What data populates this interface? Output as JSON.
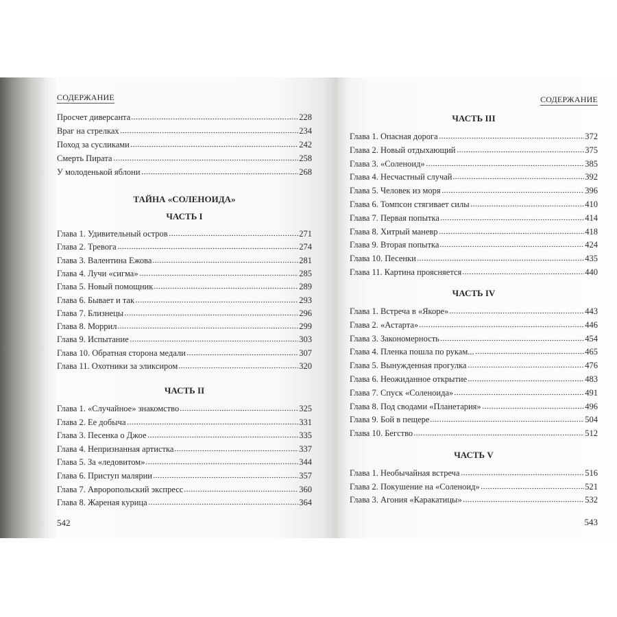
{
  "left_page": {
    "header": "СОДЕРЖАНИЕ",
    "entries": [
      {
        "label": "Просчет диверсанта",
        "page": "228"
      },
      {
        "label": "Враг на стрелках",
        "page": "234"
      },
      {
        "label": "Поход за сусликами",
        "page": "242"
      },
      {
        "label": "Смерть Пирата",
        "page": "258"
      },
      {
        "label": "У молоденькой яблони",
        "page": "268"
      }
    ],
    "book_title": "ТАЙНА «СОЛЕНОИДА»",
    "parts": [
      {
        "title": "ЧАСТЬ I",
        "chapters": [
          {
            "label": "Глава 1. Удивительный остров",
            "page": "271"
          },
          {
            "label": "Глава 2. Тревога",
            "page": "274"
          },
          {
            "label": "Глава 3. Валентина Ежова",
            "page": "281"
          },
          {
            "label": "Глава 4. Лучи «сигма»",
            "page": "285"
          },
          {
            "label": "Глава 5. Новый помощник",
            "page": "289"
          },
          {
            "label": "Глава 6. Бывает и так",
            "page": "293"
          },
          {
            "label": "Глава 7. Близнецы",
            "page": "296"
          },
          {
            "label": "Глава 8. Моррил",
            "page": "299"
          },
          {
            "label": "Глава 9. Испытание",
            "page": "303"
          },
          {
            "label": "Глава 10. Обратная сторона медали",
            "page": "307"
          },
          {
            "label": "Глава 11. Охотники за эликсиром",
            "page": "320"
          }
        ]
      },
      {
        "title": "ЧАСТЬ II",
        "chapters": [
          {
            "label": "Глава 1. «Случайное» знакомство",
            "page": "325"
          },
          {
            "label": "Глава 2. Ее добыча",
            "page": "331"
          },
          {
            "label": "Глава 3. Песенка о Джое",
            "page": "335"
          },
          {
            "label": "Глава 4. Непризнанная артистка",
            "page": "337"
          },
          {
            "label": "Глава 5. За «ледовитом»",
            "page": "344"
          },
          {
            "label": "Глава 6. Приступ малярии",
            "page": "357"
          },
          {
            "label": "Глава 7. Авроропольский экспресс",
            "page": "360"
          },
          {
            "label": "Глава 8. Жареная курица",
            "page": "364"
          }
        ]
      }
    ],
    "page_number": "542"
  },
  "right_page": {
    "header": "СОДЕРЖАНИЕ",
    "parts": [
      {
        "title": "ЧАСТЬ III",
        "chapters": [
          {
            "label": "Глава 1. Опасная дорога",
            "page": "372"
          },
          {
            "label": "Глава 2. Новый отдыхающий",
            "page": "375"
          },
          {
            "label": "Глава 3. «Соленоид»",
            "page": "385"
          },
          {
            "label": "Глава 4. Несчастный случай",
            "page": "392"
          },
          {
            "label": "Глава 5. Человек из моря",
            "page": "396"
          },
          {
            "label": "Глава 6. Томпсон стягивает силы",
            "page": "410"
          },
          {
            "label": "Глава 7. Первая попытка",
            "page": "414"
          },
          {
            "label": "Глава 8. Хитрый маневр",
            "page": "418"
          },
          {
            "label": "Глава 9. Вторая попытка",
            "page": "424"
          },
          {
            "label": "Глава 10. Песенки",
            "page": "435"
          },
          {
            "label": "Глава 11. Картина проясняется",
            "page": "440"
          }
        ]
      },
      {
        "title": "ЧАСТЬ IV",
        "chapters": [
          {
            "label": "Глава 1. Встреча в «Якоре»",
            "page": "443"
          },
          {
            "label": "Глава 2. «Астарта»",
            "page": "446"
          },
          {
            "label": "Глава 3. Закономерность",
            "page": "454"
          },
          {
            "label": "Глава 4. Пленка пошла по рукам...",
            "page": "465"
          },
          {
            "label": "Глава 5. Вынужденная прогулка",
            "page": "476"
          },
          {
            "label": "Глава 6. Неожиданное открытие",
            "page": "483"
          },
          {
            "label": "Глава 7. Спуск «Соленоида»",
            "page": "491"
          },
          {
            "label": "Глава 8. Под сводами «Планетария»",
            "page": "496"
          },
          {
            "label": "Глава 9. Бой в пещере",
            "page": "504"
          },
          {
            "label": "Глава 10. Бегство",
            "page": "512"
          }
        ]
      },
      {
        "title": "ЧАСТЬ V",
        "chapters": [
          {
            "label": "Глава 1. Необычайная встреча",
            "page": "516"
          },
          {
            "label": "Глава 2. Покушение на «Соленоид»",
            "page": "521"
          },
          {
            "label": "Глава 3. Агония «Каракатицы»",
            "page": "532"
          }
        ]
      }
    ],
    "page_number": "543"
  }
}
